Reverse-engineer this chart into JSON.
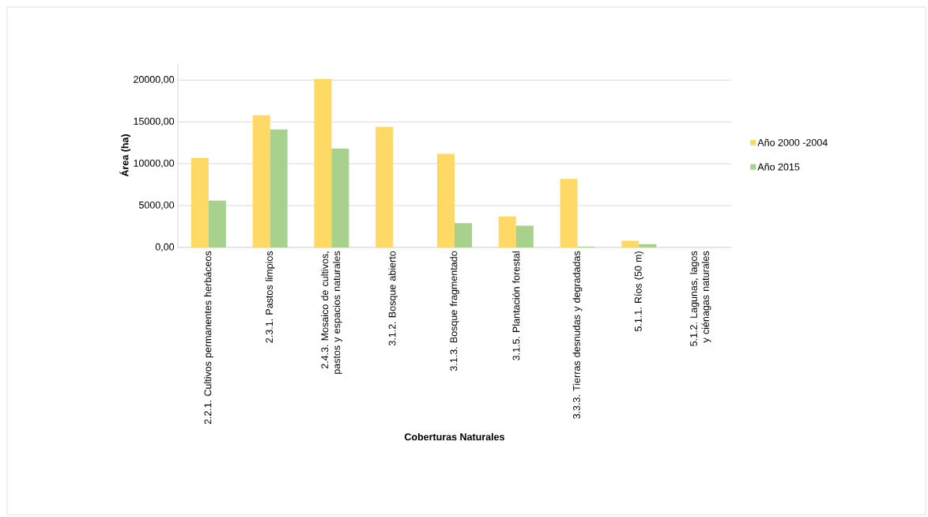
{
  "chart_data": {
    "type": "bar",
    "xlabel": "Coberturas Naturales",
    "ylabel": "Área (ha)",
    "categories": [
      "2.2.1. Cultivos permanentes herbáceos",
      "2.3.1. Pastos limpios",
      "2.4.3. Mosaico de cultivos, pastos y espacios naturales",
      "3.1.2. Bosque abierto",
      "3.1.3. Bosque fragmentado",
      "3.1.5. Plantación forestal",
      "3.3.3. Tierras desnudas y degradadas",
      "5.1.1. Ríos (50 m)",
      "5.1.2. Lagunas, lagos y ciénagas naturales"
    ],
    "series": [
      {
        "name": "Año 2000 -2004",
        "color": "#ffd966",
        "values": [
          10700,
          15800,
          20100,
          14400,
          11200,
          3700,
          8200,
          800,
          0
        ]
      },
      {
        "name": "Año 2015",
        "color": "#a9d18e",
        "values": [
          5600,
          14100,
          11800,
          0,
          2900,
          2600,
          100,
          400,
          0
        ]
      }
    ],
    "ylim": [
      0,
      22000
    ],
    "yticks": [
      {
        "value": 0,
        "label": "0,00"
      },
      {
        "value": 5000,
        "label": "5000,00"
      },
      {
        "value": 10000,
        "label": "10000,00"
      },
      {
        "value": 15000,
        "label": "15000,00"
      },
      {
        "value": 20000,
        "label": "20000,00"
      }
    ],
    "grid": "y",
    "legend": "right"
  }
}
